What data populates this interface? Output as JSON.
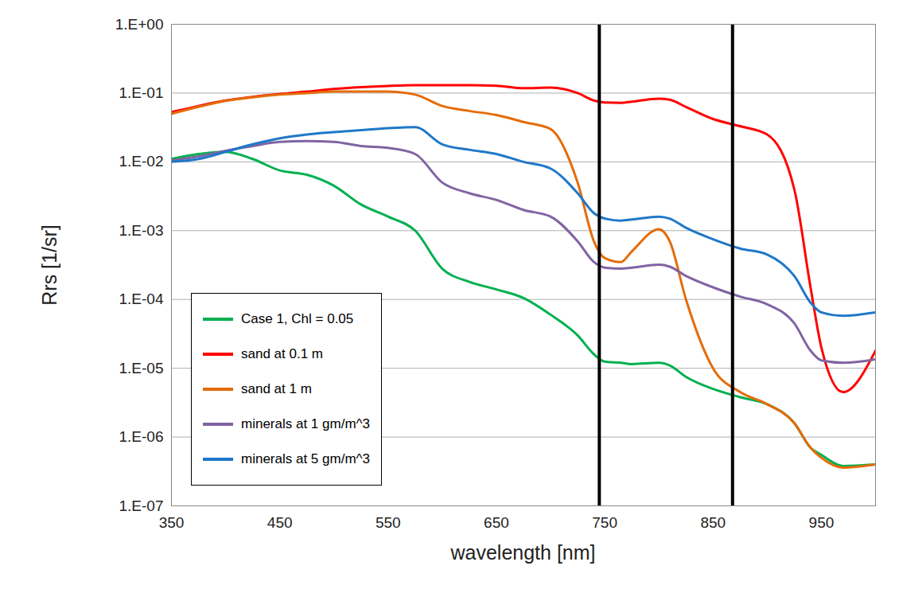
{
  "chart_data": {
    "type": "line",
    "x_label": "wavelength  [nm]",
    "y_label": "Rrs  [1/sr]",
    "x": [
      350,
      375,
      400,
      425,
      450,
      475,
      500,
      525,
      550,
      575,
      600,
      625,
      650,
      675,
      700,
      725,
      740,
      750,
      765,
      775,
      800,
      810,
      825,
      850,
      875,
      900,
      925,
      940,
      950,
      970,
      1000
    ],
    "series": [
      {
        "name": "Case 1, Chl = 0.05",
        "color": "#00b050",
        "values": [
          0.011,
          0.013,
          0.014,
          0.011,
          0.0075,
          0.0065,
          0.0045,
          0.0024,
          0.0016,
          0.001,
          0.00028,
          0.00018,
          0.00014,
          0.000105,
          6e-05,
          3e-05,
          1.6e-05,
          1.25e-05,
          1.2e-05,
          1.15e-05,
          1.2e-05,
          1.1e-05,
          7.5e-06,
          5e-06,
          3.8e-06,
          3e-06,
          1.6e-06,
          7e-07,
          5.5e-07,
          3.8e-07,
          4e-07
        ]
      },
      {
        "name": "sand at 0.1 m",
        "color": "#ff0000",
        "values": [
          0.053,
          0.065,
          0.078,
          0.088,
          0.097,
          0.105,
          0.115,
          0.122,
          0.127,
          0.13,
          0.13,
          0.13,
          0.128,
          0.118,
          0.12,
          0.1,
          0.078,
          0.073,
          0.072,
          0.075,
          0.083,
          0.08,
          0.063,
          0.042,
          0.033,
          0.025,
          0.004,
          0.00015,
          2e-05,
          4.5e-06,
          1.8e-05
        ]
      },
      {
        "name": "sand at 1 m",
        "color": "#e46c0a",
        "values": [
          0.05,
          0.063,
          0.077,
          0.087,
          0.095,
          0.1,
          0.105,
          0.105,
          0.105,
          0.095,
          0.065,
          0.055,
          0.048,
          0.038,
          0.03,
          0.005,
          0.0007,
          0.0004,
          0.00035,
          0.0005,
          0.00105,
          0.0007,
          0.0001,
          1e-05,
          4.5e-06,
          3e-06,
          1.6e-06,
          7e-07,
          5e-07,
          3.6e-07,
          4e-07
        ]
      },
      {
        "name": "minerals at 1 gm/m^3",
        "color": "#8064a2",
        "values": [
          0.0105,
          0.012,
          0.0145,
          0.017,
          0.0195,
          0.02,
          0.0195,
          0.017,
          0.016,
          0.013,
          0.005,
          0.0035,
          0.0028,
          0.002,
          0.0016,
          0.0007,
          0.00035,
          0.00029,
          0.00028,
          0.00029,
          0.00032,
          0.0003,
          0.00022,
          0.00015,
          0.00011,
          8.5e-05,
          4.5e-05,
          1.8e-05,
          1.3e-05,
          1.2e-05,
          1.35e-05
        ]
      },
      {
        "name": "minerals at 5 gm/m^3",
        "color": "#1f78c8",
        "values": [
          0.01,
          0.011,
          0.014,
          0.018,
          0.022,
          0.025,
          0.027,
          0.029,
          0.031,
          0.032,
          0.018,
          0.015,
          0.013,
          0.01,
          0.008,
          0.0035,
          0.0018,
          0.0015,
          0.0014,
          0.00145,
          0.0016,
          0.0015,
          0.0011,
          0.00075,
          0.00055,
          0.00045,
          0.00022,
          9e-05,
          6.5e-05,
          5.8e-05,
          6.5e-05
        ]
      }
    ],
    "xlim": [
      350,
      1000
    ],
    "xticks": [
      350,
      450,
      550,
      650,
      750,
      850,
      950
    ],
    "ylim": [
      1e-07,
      1
    ],
    "yticks": [
      {
        "value": 1,
        "label": "1.E+00"
      },
      {
        "value": 0.1,
        "label": "1.E-01"
      },
      {
        "value": 0.01,
        "label": "1.E-02"
      },
      {
        "value": 0.001,
        "label": "1.E-03"
      },
      {
        "value": 0.0001,
        "label": "1.E-04"
      },
      {
        "value": 1e-05,
        "label": "1.E-05"
      },
      {
        "value": 1e-06,
        "label": "1.E-06"
      },
      {
        "value": 1e-07,
        "label": "1.E-07"
      }
    ],
    "log": "y",
    "grid": "y",
    "legend": "bottom-left",
    "vertical_lines": [
      745,
      868
    ]
  }
}
